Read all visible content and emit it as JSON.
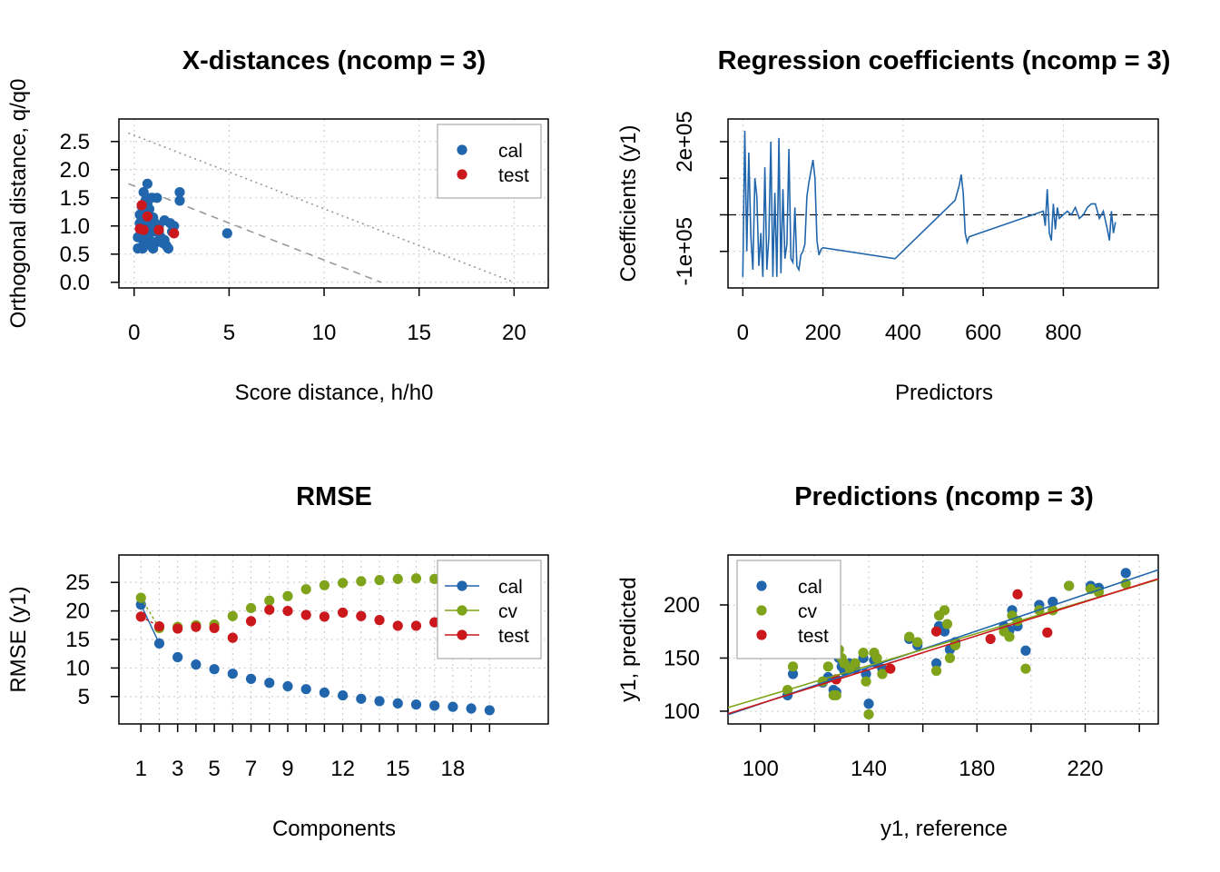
{
  "colors": {
    "cal": "#2166ac",
    "cv": "#7fa31a",
    "test": "#cb181d",
    "limit": "#999999"
  },
  "chart_data": [
    {
      "id": "xdist",
      "type": "scatter",
      "title": "X-distances (ncomp = 3)",
      "xlabel": "Score distance, h/h0",
      "ylabel": "Orthogonal distance, q/q0",
      "xlim": [
        -0.8,
        21.8
      ],
      "ylim": [
        -0.1,
        2.9
      ],
      "xticks": [
        0,
        5,
        10,
        15,
        20
      ],
      "yticks": [
        0.0,
        0.5,
        1.0,
        1.5,
        2.0,
        2.5
      ],
      "ytick_labels": [
        "0.0",
        "0.5",
        "1.0",
        "1.5",
        "2.0",
        "2.5"
      ],
      "legend": {
        "position": "top-right",
        "entries": [
          "cal",
          "test"
        ]
      },
      "limit_lines": [
        {
          "style": "dashed",
          "x": [
            -0.3,
            13.0
          ],
          "y": [
            1.75,
            0.0
          ]
        },
        {
          "style": "dotted",
          "x": [
            -0.3,
            20.0
          ],
          "y": [
            2.65,
            0.0
          ]
        }
      ],
      "series": [
        {
          "name": "cal",
          "color_key": "cal",
          "points": [
            [
              0.2,
              0.6
            ],
            [
              0.3,
              0.8
            ],
            [
              0.4,
              1.0
            ],
            [
              0.5,
              1.1
            ],
            [
              0.6,
              1.2
            ],
            [
              0.7,
              1.4
            ],
            [
              0.8,
              1.3
            ],
            [
              0.9,
              1.0
            ],
            [
              1.0,
              0.9
            ],
            [
              1.1,
              0.7
            ],
            [
              1.2,
              1.5
            ],
            [
              0.5,
              1.6
            ],
            [
              0.7,
              1.75
            ],
            [
              0.3,
              1.05
            ],
            [
              0.4,
              0.95
            ],
            [
              0.6,
              0.85
            ],
            [
              0.8,
              0.75
            ],
            [
              1.0,
              1.15
            ],
            [
              1.1,
              1.05
            ],
            [
              1.3,
              0.9
            ],
            [
              1.5,
              0.7
            ],
            [
              1.7,
              0.65
            ],
            [
              1.8,
              0.6
            ],
            [
              2.0,
              0.9
            ],
            [
              2.1,
              1.0
            ],
            [
              1.6,
              1.1
            ],
            [
              1.4,
              0.8
            ],
            [
              0.9,
              0.65
            ],
            [
              0.5,
              0.7
            ],
            [
              0.2,
              0.8
            ],
            [
              0.3,
              1.2
            ],
            [
              0.6,
              1.45
            ],
            [
              0.9,
              1.5
            ],
            [
              2.4,
              1.6
            ],
            [
              2.4,
              1.45
            ],
            [
              4.9,
              0.87
            ],
            [
              1.2,
              0.72
            ],
            [
              0.7,
              0.78
            ],
            [
              1.0,
              0.6
            ],
            [
              1.9,
              1.05
            ],
            [
              0.45,
              0.6
            ],
            [
              0.8,
              1.1
            ],
            [
              1.3,
              1.0
            ],
            [
              1.6,
              0.75
            ],
            [
              0.4,
              1.35
            ]
          ]
        },
        {
          "name": "test",
          "color_key": "test",
          "points": [
            [
              0.4,
              1.37
            ],
            [
              0.7,
              1.17
            ],
            [
              0.3,
              0.95
            ],
            [
              0.5,
              0.93
            ],
            [
              1.3,
              0.93
            ],
            [
              2.1,
              0.87
            ]
          ]
        }
      ]
    },
    {
      "id": "regcoeffs",
      "type": "line",
      "title": "Regression coefficients (ncomp = 3)",
      "xlabel": "Predictors",
      "ylabel": "Coefficients (y1)",
      "xlim": [
        -37,
        1037
      ],
      "ylim": [
        -200000,
        262000
      ],
      "xticks": [
        0,
        200,
        400,
        600,
        800
      ],
      "yticks": [
        -100000,
        0,
        100000,
        200000
      ],
      "ytick_labels": {
        "-100000": "-1e+05",
        "200000": "2e+05"
      },
      "reference_line": {
        "y": 0,
        "style": "dashed"
      },
      "series": [
        {
          "name": "",
          "color_key": "cal",
          "x": [
            0,
            5,
            10,
            15,
            20,
            25,
            30,
            35,
            40,
            45,
            50,
            55,
            60,
            65,
            70,
            75,
            80,
            85,
            90,
            95,
            100,
            105,
            110,
            115,
            120,
            125,
            130,
            135,
            140,
            145,
            150,
            155,
            160,
            165,
            170,
            175,
            180,
            185,
            190,
            195,
            200,
            380,
            530,
            540,
            545,
            550,
            555,
            560,
            565,
            750,
            755,
            760,
            765,
            770,
            775,
            780,
            785,
            790,
            800,
            810,
            820,
            830,
            840,
            850,
            860,
            870,
            880,
            890,
            900,
            910,
            915,
            920,
            925,
            930
          ],
          "y": [
            -170000,
            230000,
            -100000,
            170000,
            -60000,
            -150000,
            100000,
            50000,
            -140000,
            -50000,
            -170000,
            130000,
            -150000,
            -60000,
            200000,
            -170000,
            60000,
            -170000,
            210000,
            -160000,
            70000,
            -120000,
            -80000,
            180000,
            -120000,
            -130000,
            20000,
            -140000,
            -150000,
            -110000,
            -100000,
            -80000,
            50000,
            90000,
            120000,
            150000,
            100000,
            -70000,
            -110000,
            -95000,
            -90000,
            -120000,
            40000,
            80000,
            110000,
            60000,
            -50000,
            -75000,
            -60000,
            10000,
            -30000,
            70000,
            -50000,
            -70000,
            30000,
            -40000,
            20000,
            -10000,
            0,
            10000,
            0,
            20000,
            -10000,
            0,
            20000,
            30000,
            30000,
            -10000,
            10000,
            -40000,
            -70000,
            10000,
            -50000,
            -20000
          ]
        }
      ]
    },
    {
      "id": "rmse",
      "type": "scatter",
      "title": "RMSE",
      "xlabel": "Components",
      "ylabel": "RMSE (y1)",
      "xlim": [
        -0.2,
        23.2
      ],
      "ylim": [
        0.2,
        29.8
      ],
      "xticks_minor": [
        1,
        2,
        3,
        4,
        5,
        6,
        7,
        8,
        9,
        10,
        11,
        12,
        13,
        14,
        15,
        16,
        17,
        18,
        19,
        20
      ],
      "xtick_labels": [
        1,
        3,
        5,
        7,
        9,
        12,
        15,
        18
      ],
      "yticks": [
        5,
        10,
        15,
        20,
        25
      ],
      "legend": {
        "position": "top-right",
        "entries": [
          "cal",
          "cv",
          "test"
        ]
      },
      "series": [
        {
          "name": "cal",
          "color_key": "cal",
          "x": [
            1,
            2,
            3,
            4,
            5,
            6,
            7,
            8,
            9,
            10,
            11,
            12,
            13,
            14,
            15,
            16,
            17,
            18,
            19,
            20
          ],
          "values": [
            21.1,
            14.3,
            11.9,
            10.6,
            9.8,
            9.0,
            8.1,
            7.4,
            6.8,
            6.3,
            5.7,
            5.2,
            4.6,
            4.2,
            3.8,
            3.6,
            3.4,
            3.2,
            2.9,
            2.6
          ]
        },
        {
          "name": "cv",
          "color_key": "cv",
          "x": [
            1,
            2,
            3,
            4,
            5,
            6,
            7,
            8,
            9,
            10,
            11,
            12,
            13,
            14,
            15,
            16,
            17,
            18
          ],
          "values": [
            22.3,
            17.0,
            17.2,
            17.5,
            17.6,
            19.1,
            20.5,
            21.8,
            22.6,
            23.8,
            24.5,
            24.9,
            25.2,
            25.4,
            25.6,
            25.7,
            25.6,
            25.5
          ]
        },
        {
          "name": "test",
          "color_key": "test",
          "x": [
            1,
            2,
            3,
            4,
            5,
            6,
            7,
            8,
            9,
            10,
            11,
            12,
            13,
            14,
            15,
            16,
            17
          ],
          "values": [
            19.0,
            17.3,
            16.9,
            17.2,
            17.0,
            15.3,
            18.2,
            20.2,
            20.0,
            19.3,
            19.0,
            19.7,
            19.1,
            18.4,
            17.4,
            17.4,
            18.0
          ]
        }
      ]
    },
    {
      "id": "predictions",
      "type": "scatter",
      "title": "Predictions (ncomp = 3)",
      "xlabel": "y1, reference",
      "ylabel": "y1, predicted",
      "xlim": [
        88,
        247
      ],
      "ylim": [
        88,
        247
      ],
      "xticks_minor": [
        100,
        120,
        140,
        160,
        180,
        200,
        220,
        240
      ],
      "xtick_labels": [
        100,
        140,
        180,
        220
      ],
      "yticks": [
        100,
        150,
        200
      ],
      "legend": {
        "position": "top-left",
        "entries": [
          "cal",
          "cv",
          "test"
        ]
      },
      "fit_lines": [
        {
          "name": "cal",
          "color_key": "cal",
          "x": [
            88,
            247
          ],
          "y": [
            96.7,
            233.0
          ]
        },
        {
          "name": "cv",
          "color_key": "cv",
          "x": [
            88,
            247
          ],
          "y": [
            103.4,
            224.0
          ]
        },
        {
          "name": "test",
          "color_key": "test",
          "x": [
            88,
            247
          ],
          "y": [
            97.6,
            224.6
          ]
        }
      ],
      "series": [
        {
          "name": "cal",
          "color_key": "cal",
          "points": [
            [
              110,
              115
            ],
            [
              112,
              135
            ],
            [
              123,
              127
            ],
            [
              125,
              132
            ],
            [
              127,
              120
            ],
            [
              128,
              118
            ],
            [
              129,
              150
            ],
            [
              130,
              142
            ],
            [
              131,
              138
            ],
            [
              133,
              145
            ],
            [
              135,
              140
            ],
            [
              138,
              150
            ],
            [
              139,
              135
            ],
            [
              140,
              107
            ],
            [
              142,
              148
            ],
            [
              143,
              145
            ],
            [
              145,
              140
            ],
            [
              155,
              168
            ],
            [
              158,
              162
            ],
            [
              165,
              145
            ],
            [
              166,
              180
            ],
            [
              168,
              175
            ],
            [
              170,
              158
            ],
            [
              172,
              165
            ],
            [
              190,
              180
            ],
            [
              192,
              176
            ],
            [
              193,
              195
            ],
            [
              195,
              180
            ],
            [
              198,
              157
            ],
            [
              203,
              200
            ],
            [
              208,
              203
            ],
            [
              214,
              218
            ],
            [
              222,
              218
            ],
            [
              225,
              216
            ],
            [
              235,
              230
            ]
          ]
        },
        {
          "name": "cv",
          "color_key": "cv",
          "points": [
            [
              110,
              120
            ],
            [
              112,
              142
            ],
            [
              123,
              128
            ],
            [
              125,
              142
            ],
            [
              127,
              115
            ],
            [
              128,
              115
            ],
            [
              129,
              158
            ],
            [
              130,
              150
            ],
            [
              131,
              145
            ],
            [
              133,
              140
            ],
            [
              135,
              145
            ],
            [
              138,
              155
            ],
            [
              139,
              128
            ],
            [
              140,
              97
            ],
            [
              142,
              155
            ],
            [
              143,
              150
            ],
            [
              145,
              135
            ],
            [
              155,
              170
            ],
            [
              158,
              165
            ],
            [
              165,
              138
            ],
            [
              166,
              190
            ],
            [
              168,
              195
            ],
            [
              169,
              182
            ],
            [
              170,
              150
            ],
            [
              172,
              162
            ],
            [
              190,
              175
            ],
            [
              192,
              170
            ],
            [
              193,
              190
            ],
            [
              195,
              185
            ],
            [
              198,
              140
            ],
            [
              203,
              195
            ],
            [
              208,
              195
            ],
            [
              214,
              218
            ],
            [
              222,
              215
            ],
            [
              225,
              212
            ],
            [
              235,
              220
            ]
          ]
        },
        {
          "name": "test",
          "color_key": "test",
          "points": [
            [
              128,
              130
            ],
            [
              148,
              140
            ],
            [
              165,
              175
            ],
            [
              185,
              168
            ],
            [
              195,
              210
            ],
            [
              206,
              174
            ]
          ]
        }
      ]
    }
  ]
}
